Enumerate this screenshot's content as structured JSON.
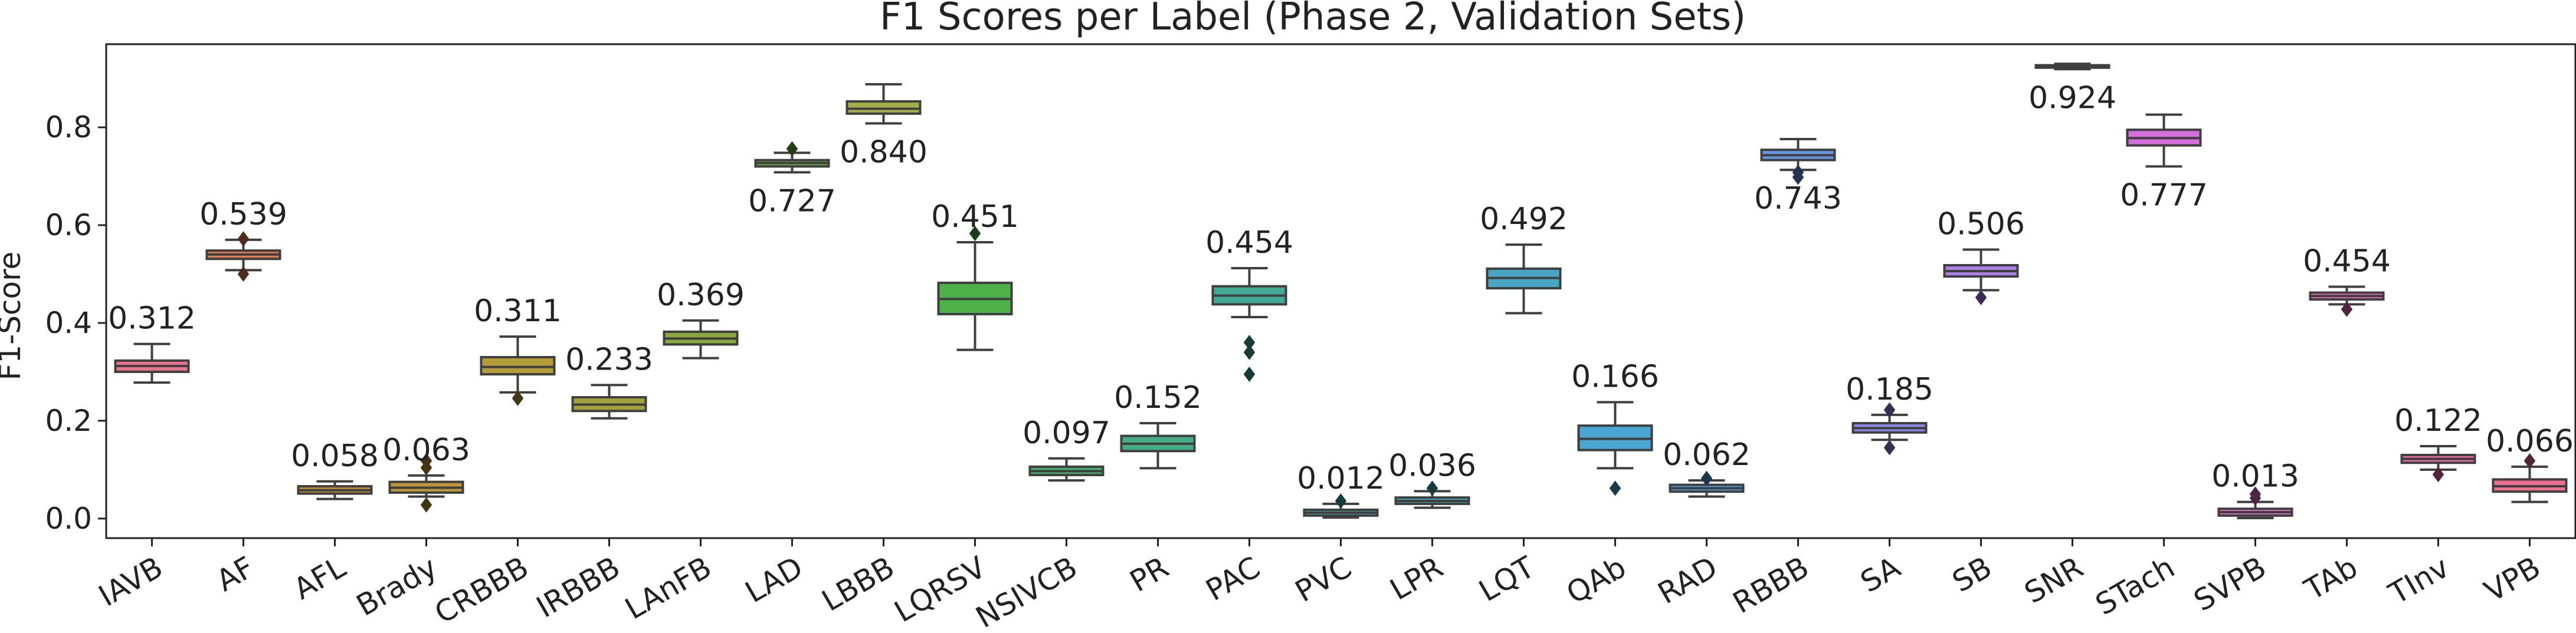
{
  "chart_data": {
    "type": "box",
    "title": "F1 Scores per Label (Phase 2, Validation Sets)",
    "xlabel": "",
    "ylabel": "F1-Score",
    "ylim": [
      -0.04,
      0.97
    ],
    "yticks": [
      0.0,
      0.2,
      0.4,
      0.6,
      0.8
    ],
    "ytick_labels": [
      "0.0",
      "0.2",
      "0.4",
      "0.6",
      "0.8"
    ],
    "grid": false,
    "label_position": [
      "above",
      "above",
      "above",
      "above",
      "above",
      "above",
      "above",
      "below",
      "below",
      "above",
      "above",
      "above",
      "above",
      "above",
      "above",
      "above",
      "above",
      "above",
      "below",
      "above",
      "above",
      "below",
      "below",
      "above",
      "above",
      "above",
      "above"
    ],
    "series": [
      {
        "label": "IAVB",
        "mean_label": "0.312",
        "color": "#e8728c",
        "whislo": 0.278,
        "q1": 0.3,
        "median": 0.312,
        "q3": 0.323,
        "whishi": 0.357,
        "fliers": []
      },
      {
        "label": "AF",
        "mean_label": "0.539",
        "color": "#e07f52",
        "whislo": 0.508,
        "q1": 0.531,
        "median": 0.54,
        "q3": 0.548,
        "whishi": 0.57,
        "fliers": [
          0.5,
          0.572
        ]
      },
      {
        "label": "AFL",
        "mean_label": "0.058",
        "color": "#c98f3c",
        "whislo": 0.04,
        "q1": 0.051,
        "median": 0.058,
        "q3": 0.066,
        "whishi": 0.076,
        "fliers": []
      },
      {
        "label": "Brady",
        "mean_label": "0.063",
        "color": "#c0963a",
        "whislo": 0.045,
        "q1": 0.053,
        "median": 0.063,
        "q3": 0.075,
        "whishi": 0.088,
        "fliers": [
          0.028,
          0.118,
          0.104
        ]
      },
      {
        "label": "CRBBB",
        "mean_label": "0.311",
        "color": "#b39d3a",
        "whislo": 0.258,
        "q1": 0.295,
        "median": 0.31,
        "q3": 0.33,
        "whishi": 0.372,
        "fliers": [
          0.246
        ]
      },
      {
        "label": "IRBBB",
        "mean_label": "0.233",
        "color": "#a0a33c",
        "whislo": 0.205,
        "q1": 0.22,
        "median": 0.233,
        "q3": 0.248,
        "whishi": 0.273,
        "fliers": []
      },
      {
        "label": "LAnFB",
        "mean_label": "0.369",
        "color": "#8ba83d",
        "whislo": 0.328,
        "q1": 0.356,
        "median": 0.368,
        "q3": 0.382,
        "whishi": 0.405,
        "fliers": []
      },
      {
        "label": "LAD",
        "mean_label": "0.727",
        "color": "#6fae43",
        "whislo": 0.708,
        "q1": 0.72,
        "median": 0.727,
        "q3": 0.733,
        "whishi": 0.748,
        "fliers": [
          0.756
        ]
      },
      {
        "label": "LBBB",
        "mean_label": "0.840",
        "color": "#a3b04a",
        "whislo": 0.808,
        "q1": 0.828,
        "median": 0.838,
        "q3": 0.853,
        "whishi": 0.888,
        "fliers": []
      },
      {
        "label": "LQRSV",
        "mean_label": "0.451",
        "color": "#4eb049",
        "whislo": 0.345,
        "q1": 0.418,
        "median": 0.449,
        "q3": 0.482,
        "whishi": 0.565,
        "fliers": [
          0.583
        ]
      },
      {
        "label": "NSIVCB",
        "mean_label": "0.097",
        "color": "#48ad6a",
        "whislo": 0.078,
        "q1": 0.089,
        "median": 0.097,
        "q3": 0.106,
        "whishi": 0.123,
        "fliers": []
      },
      {
        "label": "PR",
        "mean_label": "0.152",
        "color": "#45ac85",
        "whislo": 0.103,
        "q1": 0.138,
        "median": 0.153,
        "q3": 0.169,
        "whishi": 0.195,
        "fliers": []
      },
      {
        "label": "PAC",
        "mean_label": "0.454",
        "color": "#44aa98",
        "whislo": 0.412,
        "q1": 0.438,
        "median": 0.456,
        "q3": 0.475,
        "whishi": 0.512,
        "fliers": [
          0.36,
          0.34,
          0.295
        ]
      },
      {
        "label": "PVC",
        "mean_label": "0.012",
        "color": "#44a9a8",
        "whislo": 0.002,
        "q1": 0.006,
        "median": 0.012,
        "q3": 0.018,
        "whishi": 0.03,
        "fliers": [
          0.036
        ]
      },
      {
        "label": "LPR",
        "mean_label": "0.036",
        "color": "#46a8b5",
        "whislo": 0.022,
        "q1": 0.03,
        "median": 0.036,
        "q3": 0.043,
        "whishi": 0.056,
        "fliers": [
          0.062
        ]
      },
      {
        "label": "LQT",
        "mean_label": "0.492",
        "color": "#48a6c3",
        "whislo": 0.42,
        "q1": 0.471,
        "median": 0.492,
        "q3": 0.511,
        "whishi": 0.56,
        "fliers": []
      },
      {
        "label": "QAb",
        "mean_label": "0.166",
        "color": "#4aa5d3",
        "whislo": 0.103,
        "q1": 0.14,
        "median": 0.163,
        "q3": 0.19,
        "whishi": 0.238,
        "fliers": [
          0.062
        ]
      },
      {
        "label": "RAD",
        "mean_label": "0.062",
        "color": "#4e9ee0",
        "whislo": 0.045,
        "q1": 0.055,
        "median": 0.062,
        "q3": 0.069,
        "whishi": 0.078,
        "fliers": [
          0.082
        ]
      },
      {
        "label": "RBBB",
        "mean_label": "0.743",
        "color": "#6a94e6",
        "whislo": 0.713,
        "q1": 0.733,
        "median": 0.743,
        "q3": 0.754,
        "whishi": 0.776,
        "fliers": [
          0.698,
          0.708
        ]
      },
      {
        "label": "SA",
        "mean_label": "0.185",
        "color": "#8c89e8",
        "whislo": 0.161,
        "q1": 0.176,
        "median": 0.185,
        "q3": 0.195,
        "whishi": 0.212,
        "fliers": [
          0.145,
          0.222
        ]
      },
      {
        "label": "SB",
        "mean_label": "0.506",
        "color": "#a880e6",
        "whislo": 0.467,
        "q1": 0.495,
        "median": 0.506,
        "q3": 0.518,
        "whishi": 0.55,
        "fliers": [
          0.452
        ]
      },
      {
        "label": "SNR",
        "mean_label": "0.924",
        "color": "#c175e2",
        "whislo": 0.919,
        "q1": 0.922,
        "median": 0.924,
        "q3": 0.927,
        "whishi": 0.93,
        "fliers": []
      },
      {
        "label": "STach",
        "mean_label": "0.777",
        "color": "#d56fdb",
        "whislo": 0.72,
        "q1": 0.763,
        "median": 0.778,
        "q3": 0.795,
        "whishi": 0.826,
        "fliers": []
      },
      {
        "label": "SVPB",
        "mean_label": "0.013",
        "color": "#e06cc5",
        "whislo": 0.001,
        "q1": 0.006,
        "median": 0.013,
        "q3": 0.02,
        "whishi": 0.034,
        "fliers": [
          0.042,
          0.05
        ]
      },
      {
        "label": "TAb",
        "mean_label": "0.454",
        "color": "#e66ab1",
        "whislo": 0.438,
        "q1": 0.448,
        "median": 0.455,
        "q3": 0.462,
        "whishi": 0.474,
        "fliers": [
          0.428
        ]
      },
      {
        "label": "TInv",
        "mean_label": "0.122",
        "color": "#ea6ba0",
        "whislo": 0.1,
        "q1": 0.114,
        "median": 0.122,
        "q3": 0.13,
        "whishi": 0.148,
        "fliers": [
          0.09
        ]
      },
      {
        "label": "VPB",
        "mean_label": "0.066",
        "color": "#ed6f90",
        "whislo": 0.034,
        "q1": 0.055,
        "median": 0.066,
        "q3": 0.08,
        "whishi": 0.106,
        "fliers": [
          0.118
        ]
      }
    ]
  }
}
